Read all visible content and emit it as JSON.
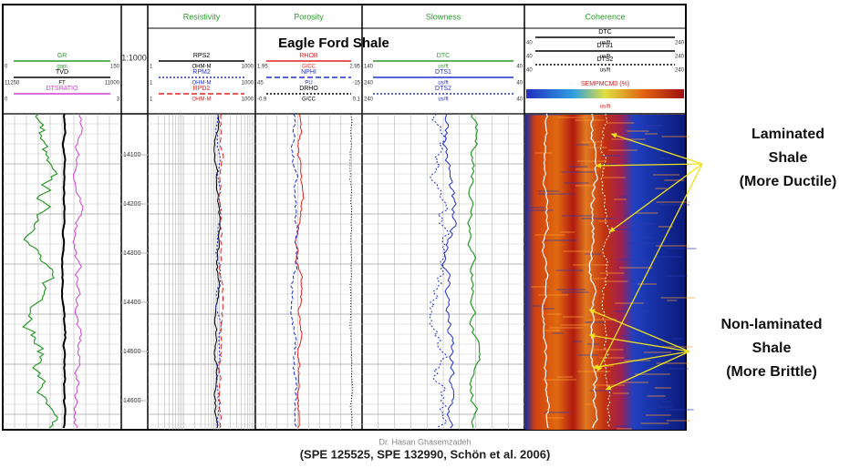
{
  "header": {
    "title": "Eagle Ford Shale",
    "scale": "1:1000"
  },
  "tracks": [
    {
      "name": null,
      "curves": [
        {
          "name": "GR",
          "unit": "gapi",
          "left": "0",
          "right": "150",
          "color": "#2a9a2a",
          "dash": "solid"
        },
        {
          "name": "TVD",
          "unit": "FT",
          "left": "11250",
          "right": "11000",
          "color": "#000000",
          "dash": "solid"
        },
        {
          "name": "DTSRATIO",
          "unit": null,
          "left": "0",
          "right": "3",
          "color": "#d040d0",
          "dash": "solid"
        }
      ]
    },
    {
      "name": "Resistivity",
      "curves": [
        {
          "name": "RPS2",
          "unit": "OHM-M",
          "left": "1",
          "right": "1000",
          "color": "#000000",
          "dash": "solid"
        },
        {
          "name": "RPM2",
          "unit": "OHM-M",
          "left": "1",
          "right": "1000",
          "color": "#2030d0",
          "dash": "dotted"
        },
        {
          "name": "RPD2",
          "unit": "OHM-M",
          "left": "1",
          "right": "1000",
          "color": "#e02020",
          "dash": "dashed"
        }
      ]
    },
    {
      "name": "Porosity",
      "curves": [
        {
          "name": "RHOB",
          "unit": "G/CC",
          "left": "1.95",
          "right": "2.95",
          "color": "#e02020",
          "dash": "solid"
        },
        {
          "name": "NPHI",
          "unit": "PU",
          "left": "45",
          "right": "-15",
          "color": "#2030d0",
          "dash": "dashed"
        },
        {
          "name": "DRHO",
          "unit": "G/CC",
          "left": "-0.9",
          "right": "0.1",
          "color": "#000000",
          "dash": "dotted"
        }
      ]
    },
    {
      "name": "Slowness",
      "curves": [
        {
          "name": "DTC",
          "unit": "us/ft",
          "left": "140",
          "right": "40",
          "color": "#2a9a2a",
          "dash": "solid"
        },
        {
          "name": "DTS1",
          "unit": "us/ft",
          "left": "240",
          "right": "40",
          "color": "#2030d0",
          "dash": "solid"
        },
        {
          "name": "DTS2",
          "unit": "us/ft",
          "left": "240",
          "right": "40",
          "color": "#2030d0",
          "dash": "dotted"
        }
      ]
    },
    {
      "name": "Coherence",
      "curves": [
        {
          "name": "DTC",
          "unit": "us/ft",
          "left": "40",
          "right": "240",
          "color": "#000000",
          "dash": "solid"
        },
        {
          "name": "DTS1",
          "unit": "us/ft",
          "left": "40",
          "right": "240",
          "color": "#000000",
          "dash": "solid"
        },
        {
          "name": "DTS2",
          "unit": "us/ft",
          "left": "40",
          "right": "240",
          "color": "#000000",
          "dash": "dotted"
        }
      ],
      "colorbar": {
        "name": "SEMPMCM0 (%)",
        "unit": "us/ft"
      }
    }
  ],
  "depths": [
    "14100",
    "14200",
    "14300",
    "14400",
    "14500",
    "14600"
  ],
  "annotations": {
    "laminated": [
      "Laminated",
      "Shale",
      "(More Ductile)"
    ],
    "non_laminated": [
      "Non-laminated",
      "Shale",
      "(More Brittle)"
    ]
  },
  "credit": "Dr. Hasan Ghasemzadeh",
  "citation": "(SPE 125525, SPE 132990, Schön et al. 2006)"
}
